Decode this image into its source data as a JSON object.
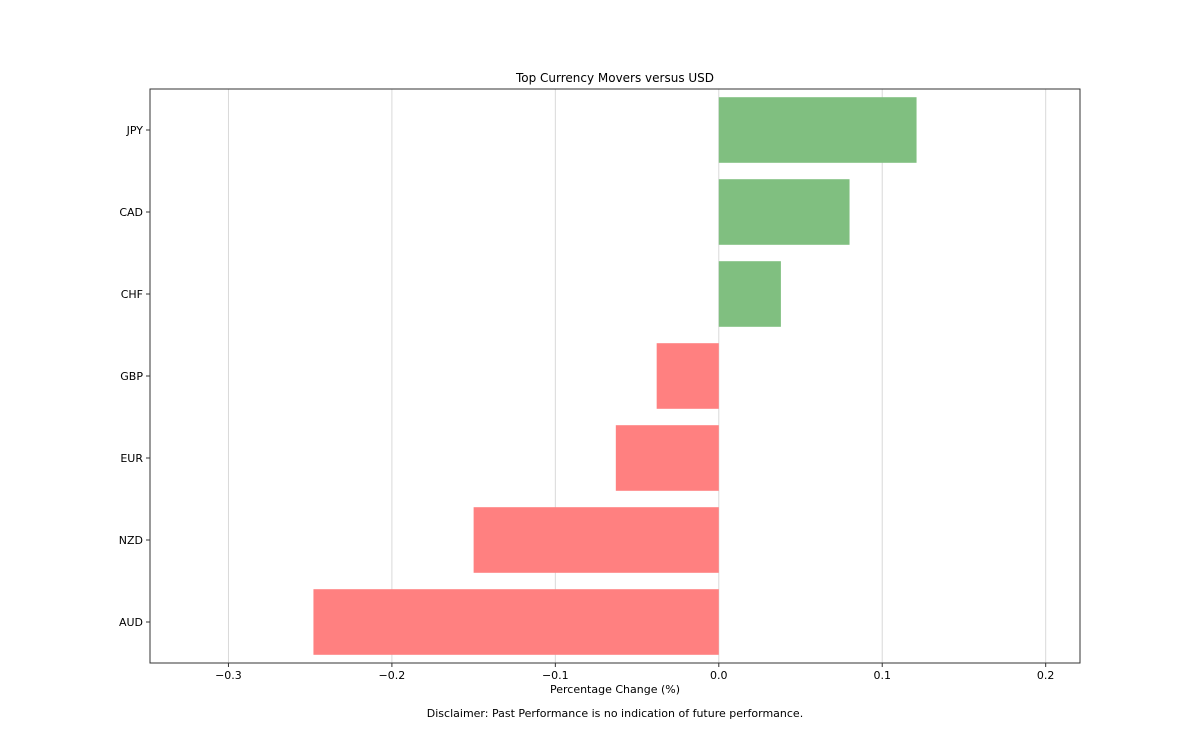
{
  "chart_data": {
    "type": "bar",
    "orientation": "horizontal",
    "title": "Top Currency Movers versus USD",
    "xlabel": "Percentage Change (%)",
    "ylabel": "",
    "categories": [
      "AUD",
      "NZD",
      "EUR",
      "GBP",
      "CHF",
      "CAD",
      "JPY"
    ],
    "values": [
      -0.248,
      -0.15,
      -0.063,
      -0.038,
      0.038,
      0.08,
      0.121
    ],
    "xlim": [
      -0.348,
      0.221
    ],
    "xticks": [
      -0.3,
      -0.2,
      -0.1,
      0.0,
      0.1,
      0.2
    ],
    "xtick_labels": [
      "−0.3",
      "−0.2",
      "−0.1",
      "0.0",
      "0.1",
      "0.2"
    ],
    "grid": "x",
    "colors": {
      "positive": "#80bf80",
      "negative": "#ff8080",
      "gridline": "#d9d9d9",
      "axes": "#333333"
    }
  },
  "footer": {
    "disclaimer": "Disclaimer: Past Performance is no indication of future performance."
  }
}
